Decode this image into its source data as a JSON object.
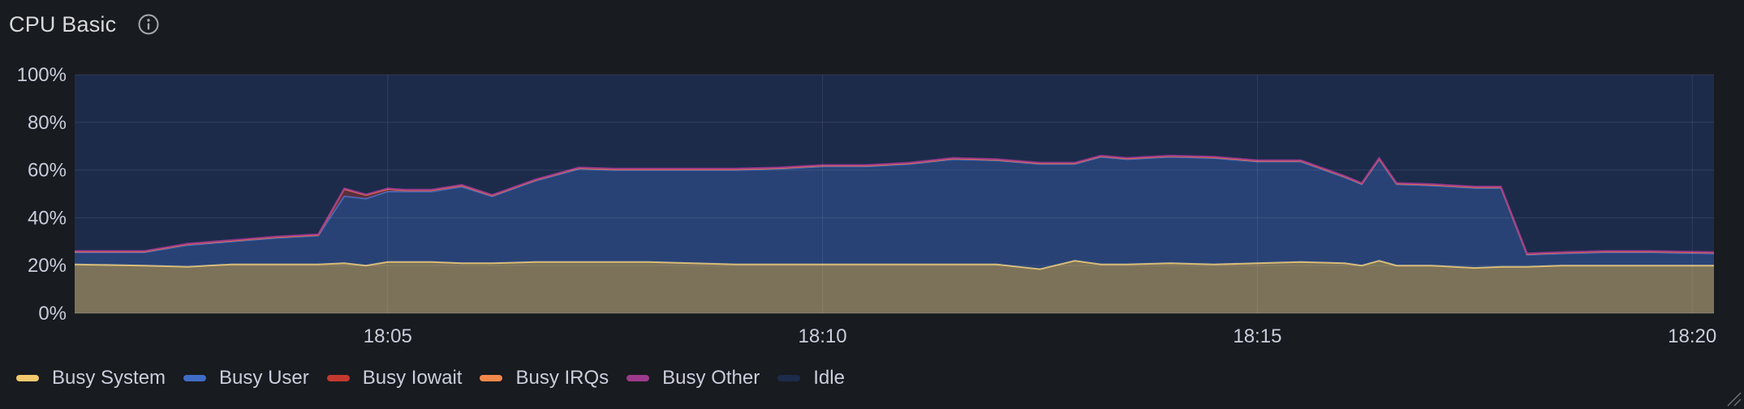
{
  "panel": {
    "title": "CPU Basic",
    "info_icon": "info-circle-icon",
    "resize_icon": "resize-handle-icon"
  },
  "chart_data": {
    "type": "area",
    "stacked": true,
    "ylim": [
      0,
      100
    ],
    "y_ticks": [
      "0%",
      "20%",
      "40%",
      "60%",
      "80%",
      "100%"
    ],
    "y_tick_values": [
      0,
      20,
      40,
      60,
      80,
      100
    ],
    "x_ticks": [
      "18:05",
      "18:10",
      "18:15",
      "18:20"
    ],
    "x_tick_values": [
      5,
      10,
      15,
      20
    ],
    "xlim": [
      1.4,
      20.25
    ],
    "x_label_note": "x values are minutes after 18:00",
    "x": [
      1.4,
      2.2,
      2.7,
      3.2,
      3.7,
      4.2,
      4.5,
      4.75,
      5.0,
      5.2,
      5.5,
      5.85,
      6.2,
      6.7,
      7.2,
      7.6,
      8.0,
      8.5,
      9.0,
      9.5,
      10.0,
      10.5,
      11.0,
      11.5,
      12.0,
      12.5,
      12.9,
      13.2,
      13.5,
      14.0,
      14.5,
      15.0,
      15.5,
      16.0,
      16.2,
      16.4,
      16.6,
      17.0,
      17.5,
      17.8,
      18.1,
      18.5,
      19.0,
      19.5,
      20.25
    ],
    "series": [
      {
        "name": "Busy System",
        "color": "#f2c96d",
        "values": [
          20.5,
          20,
          19.5,
          20.5,
          20.5,
          20.5,
          21,
          20,
          21.5,
          21.5,
          21.5,
          21,
          21,
          21.5,
          21.5,
          21.5,
          21.5,
          21,
          20.5,
          20.5,
          20.5,
          20.5,
          20.5,
          20.5,
          20.5,
          18.5,
          22,
          20.5,
          20.5,
          21,
          20.5,
          21,
          21.5,
          21,
          20,
          22,
          20,
          20,
          19,
          19.5,
          19.5,
          20,
          20,
          20,
          20
        ]
      },
      {
        "name": "Busy User",
        "color": "#3f6cc5",
        "values": [
          5,
          5.5,
          9,
          9.5,
          11,
          12,
          28,
          28,
          29.5,
          29.5,
          29.5,
          32,
          28,
          34,
          39,
          38.5,
          38.5,
          39,
          39.5,
          40,
          41,
          41,
          42,
          44,
          43.5,
          44,
          40.5,
          45,
          44,
          44.5,
          44.5,
          42.5,
          42,
          36,
          34,
          42.5,
          34,
          33.5,
          33.5,
          33,
          5,
          5,
          5.5,
          5.5,
          5
        ]
      },
      {
        "name": "Busy Iowait",
        "color": "#c4382f",
        "values": [
          0.3,
          0.3,
          0.4,
          0.3,
          0.3,
          0.3,
          3,
          1.5,
          1,
          0.5,
          0.5,
          0.5,
          0.3,
          0.3,
          0.3,
          0.3,
          0.3,
          0.3,
          0.3,
          0.3,
          0.3,
          0.3,
          0.3,
          0.3,
          0.3,
          0.3,
          0.3,
          0.3,
          0.3,
          0.3,
          0.3,
          0.3,
          0.3,
          0.3,
          0.3,
          0.3,
          0.3,
          0.3,
          0.3,
          0.3,
          0.3,
          0.3,
          0.3,
          0.3,
          0.3
        ]
      },
      {
        "name": "Busy IRQs",
        "color": "#f2884a",
        "values": [
          0.1,
          0.1,
          0.1,
          0.1,
          0.1,
          0.1,
          0.1,
          0.1,
          0.1,
          0.1,
          0.1,
          0.1,
          0.1,
          0.1,
          0.1,
          0.1,
          0.1,
          0.1,
          0.1,
          0.1,
          0.1,
          0.1,
          0.1,
          0.1,
          0.1,
          0.1,
          0.1,
          0.1,
          0.1,
          0.1,
          0.1,
          0.1,
          0.1,
          0.1,
          0.1,
          0.1,
          0.1,
          0.1,
          0.1,
          0.1,
          0.1,
          0.1,
          0.1,
          0.1,
          0.1
        ]
      },
      {
        "name": "Busy Other",
        "color": "#9c3a8c",
        "values": [
          0.2,
          0.2,
          0.2,
          0.2,
          0.2,
          0.2,
          0.2,
          0.2,
          0.2,
          0.2,
          0.2,
          0.2,
          0.2,
          0.2,
          0.2,
          0.2,
          0.2,
          0.2,
          0.2,
          0.2,
          0.2,
          0.2,
          0.2,
          0.2,
          0.2,
          0.2,
          0.2,
          0.2,
          0.2,
          0.2,
          0.2,
          0.2,
          0.2,
          0.2,
          0.2,
          0.2,
          0.2,
          0.2,
          0.2,
          0.2,
          0.2,
          0.2,
          0.2,
          0.2,
          0.2
        ]
      },
      {
        "name": "Idle",
        "color": "#1d2b4b",
        "fill_to_top": true
      }
    ],
    "grid": true,
    "legend_placement": "bottom-left"
  }
}
